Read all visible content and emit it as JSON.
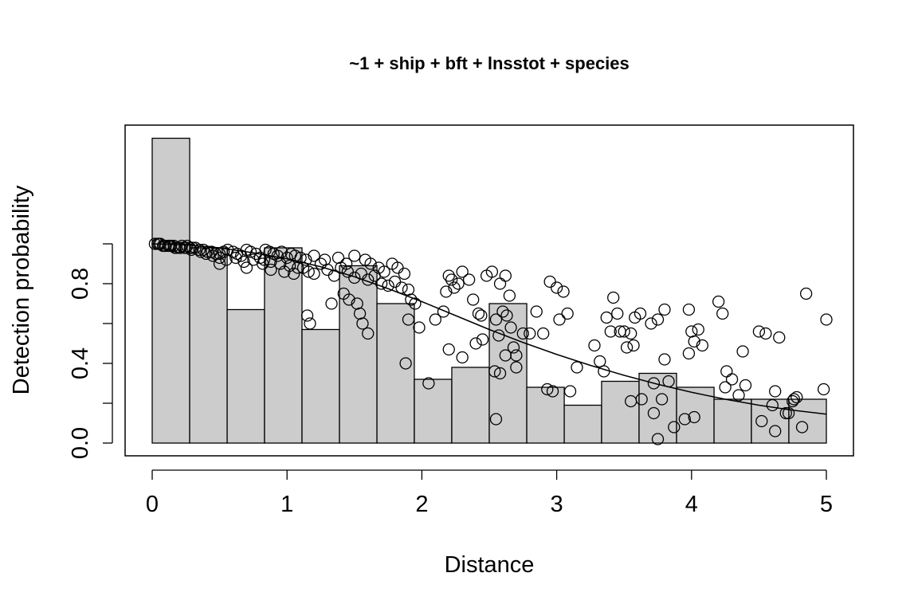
{
  "chart_data": {
    "type": "bar",
    "title": "~1 + ship + bft + lnsstot + species",
    "xlabel": "Distance",
    "ylabel": "Detection probability",
    "xlim": [
      0,
      5
    ],
    "ylim": [
      0,
      1.5
    ],
    "grid": false,
    "legend": "none",
    "xticks": [
      "0",
      "1",
      "2",
      "3",
      "4",
      "5"
    ],
    "yticks": [
      "0.0",
      "0.4",
      "0.8"
    ],
    "histogram": {
      "bins": [
        [
          0.0,
          0.278
        ],
        [
          0.278,
          0.556
        ],
        [
          0.556,
          0.833
        ],
        [
          0.833,
          1.111
        ],
        [
          1.111,
          1.389
        ],
        [
          1.389,
          1.667
        ],
        [
          1.667,
          1.944
        ],
        [
          1.944,
          2.222
        ],
        [
          2.222,
          2.5
        ],
        [
          2.5,
          2.778
        ],
        [
          2.778,
          3.056
        ],
        [
          3.056,
          3.333
        ],
        [
          3.333,
          3.611
        ],
        [
          3.611,
          3.889
        ],
        [
          3.889,
          4.167
        ],
        [
          4.167,
          4.444
        ],
        [
          4.444,
          4.722
        ],
        [
          4.722,
          5.0
        ]
      ],
      "values": [
        1.53,
        0.98,
        0.67,
        0.98,
        0.57,
        0.89,
        0.7,
        0.32,
        0.38,
        0.7,
        0.28,
        0.19,
        0.31,
        0.35,
        0.28,
        0.22,
        0.22,
        0.22
      ]
    },
    "fitted_line": {
      "x": [
        0.0,
        0.25,
        0.5,
        0.75,
        1.0,
        1.25,
        1.5,
        1.75,
        2.0,
        2.25,
        2.5,
        2.75,
        3.0,
        3.25,
        3.5,
        3.75,
        4.0,
        4.25,
        4.5,
        4.75,
        5.0
      ],
      "y": [
        1.0,
        0.995,
        0.98,
        0.955,
        0.925,
        0.885,
        0.835,
        0.775,
        0.71,
        0.64,
        0.57,
        0.505,
        0.445,
        0.39,
        0.34,
        0.295,
        0.255,
        0.22,
        0.19,
        0.165,
        0.145
      ]
    },
    "points": {
      "x": [
        0.02,
        0.04,
        0.06,
        0.08,
        0.1,
        0.12,
        0.14,
        0.16,
        0.18,
        0.2,
        0.22,
        0.24,
        0.26,
        0.28,
        0.3,
        0.05,
        0.09,
        0.13,
        0.17,
        0.21,
        0.25,
        0.29,
        0.32,
        0.35,
        0.38,
        0.41,
        0.44,
        0.47,
        0.5,
        0.53,
        0.56,
        0.6,
        0.63,
        0.66,
        0.7,
        0.73,
        0.77,
        0.8,
        0.84,
        0.87,
        0.9,
        0.93,
        0.96,
        1.0,
        1.03,
        1.06,
        1.1,
        1.14,
        0.36,
        0.4,
        0.45,
        0.5,
        0.55,
        0.62,
        0.68,
        0.75,
        0.82,
        0.88,
        0.95,
        1.02,
        1.08,
        0.5,
        0.7,
        0.83,
        0.88,
        0.98,
        1.05,
        1.12,
        1.16,
        1.2,
        1.25,
        1.3,
        1.35,
        1.4,
        1.45,
        1.5,
        1.55,
        1.6,
        1.65,
        1.7,
        1.75,
        1.8,
        1.85,
        1.9,
        1.2,
        1.28,
        1.38,
        1.44,
        1.5,
        1.58,
        1.62,
        1.68,
        1.72,
        1.78,
        1.82,
        1.87,
        1.92,
        1.95,
        1.15,
        1.17,
        1.33,
        1.42,
        1.46,
        1.52,
        1.54,
        1.56,
        1.6,
        1.9,
        1.88,
        1.98,
        2.05,
        2.1,
        2.16,
        2.18,
        2.2,
        2.22,
        2.24,
        2.27,
        2.3,
        2.35,
        2.38,
        2.42,
        2.44,
        2.48,
        2.52,
        2.55,
        2.58,
        2.62,
        2.65,
        2.2,
        2.3,
        2.4,
        2.45,
        2.54,
        2.57,
        2.6,
        2.63,
        2.66,
        2.68,
        2.7,
        2.75,
        2.8,
        2.55,
        2.58,
        2.62,
        2.7,
        2.85,
        2.9,
        2.95,
        3.0,
        3.02,
        3.05,
        3.08,
        2.93,
        2.97,
        3.1,
        3.15,
        3.28,
        3.32,
        3.37,
        3.42,
        3.45,
        3.5,
        3.55,
        3.58,
        3.62,
        3.4,
        3.47,
        3.52,
        3.57,
        3.7,
        3.75,
        3.8,
        3.72,
        3.78,
        3.35,
        3.55,
        3.63,
        3.72,
        3.75,
        3.8,
        3.83,
        3.87,
        3.95,
        3.98,
        4.0,
        4.02,
        4.05,
        4.08,
        3.98,
        4.02,
        4.2,
        4.23,
        4.26,
        4.3,
        4.38,
        4.4,
        4.25,
        4.35,
        4.5,
        4.55,
        4.6,
        4.62,
        4.65,
        4.7,
        4.75,
        4.78,
        4.82,
        4.85,
        4.98,
        5.0,
        4.62,
        4.76,
        4.52,
        4.72
      ],
      "y": [
        1.0,
        1.0,
        1.0,
        0.99,
        0.99,
        0.99,
        0.99,
        0.99,
        0.98,
        0.98,
        0.99,
        0.98,
        0.99,
        0.98,
        0.98,
        1.0,
        0.99,
        0.99,
        0.98,
        0.98,
        0.98,
        0.97,
        0.98,
        0.97,
        0.97,
        0.96,
        0.96,
        0.95,
        0.95,
        0.96,
        0.97,
        0.96,
        0.95,
        0.94,
        0.97,
        0.96,
        0.95,
        0.93,
        0.97,
        0.96,
        0.95,
        0.94,
        0.96,
        0.93,
        0.95,
        0.94,
        0.93,
        0.92,
        0.96,
        0.95,
        0.94,
        0.93,
        0.92,
        0.93,
        0.91,
        0.92,
        0.9,
        0.91,
        0.9,
        0.89,
        0.88,
        0.9,
        0.88,
        0.92,
        0.87,
        0.86,
        0.85,
        0.88,
        0.86,
        0.85,
        0.9,
        0.87,
        0.84,
        0.88,
        0.86,
        0.83,
        0.85,
        0.82,
        0.84,
        0.8,
        0.79,
        0.81,
        0.78,
        0.77,
        0.94,
        0.92,
        0.93,
        0.9,
        0.94,
        0.92,
        0.9,
        0.88,
        0.86,
        0.9,
        0.88,
        0.85,
        0.72,
        0.7,
        0.64,
        0.6,
        0.7,
        0.75,
        0.72,
        0.7,
        0.65,
        0.6,
        0.55,
        0.62,
        0.4,
        0.58,
        0.3,
        0.62,
        0.66,
        0.76,
        0.84,
        0.82,
        0.78,
        0.8,
        0.86,
        0.82,
        0.72,
        0.65,
        0.64,
        0.84,
        0.86,
        0.62,
        0.8,
        0.84,
        0.74,
        0.47,
        0.43,
        0.5,
        0.52,
        0.36,
        0.54,
        0.66,
        0.64,
        0.58,
        0.48,
        0.44,
        0.55,
        0.55,
        0.12,
        0.35,
        0.44,
        0.38,
        0.66,
        0.55,
        0.81,
        0.78,
        0.62,
        0.76,
        0.65,
        0.27,
        0.26,
        0.26,
        0.38,
        0.49,
        0.41,
        0.63,
        0.73,
        0.65,
        0.56,
        0.55,
        0.63,
        0.65,
        0.56,
        0.56,
        0.48,
        0.49,
        0.6,
        0.62,
        0.67,
        0.15,
        0.22,
        0.36,
        0.21,
        0.22,
        0.3,
        0.02,
        0.42,
        0.31,
        0.08,
        0.12,
        0.67,
        0.56,
        0.51,
        0.57,
        0.49,
        0.45,
        0.13,
        0.71,
        0.65,
        0.36,
        0.32,
        0.46,
        0.29,
        0.28,
        0.24,
        0.56,
        0.55,
        0.19,
        0.26,
        0.53,
        0.15,
        0.21,
        0.23,
        0.08,
        0.75,
        0.27,
        0.62,
        0.06,
        0.22,
        0.11,
        0.15
      ]
    }
  }
}
